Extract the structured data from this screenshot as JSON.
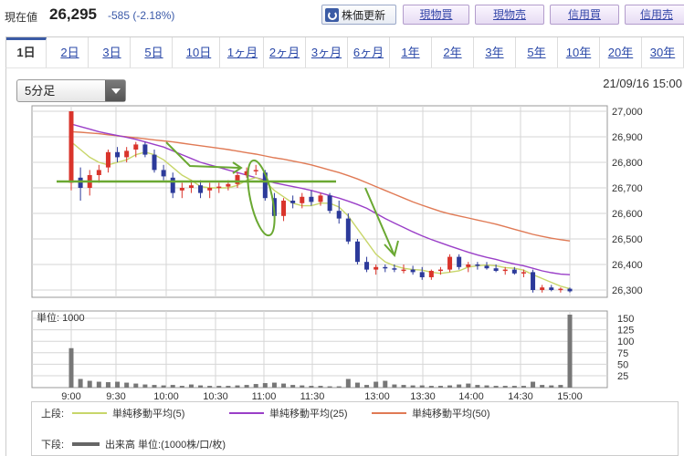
{
  "header": {
    "price_label": "現在値",
    "price_value": "26,295",
    "price_change": "-585 (-2.18%)",
    "refresh_label": "株価更新",
    "actions": [
      "現物買",
      "現物売",
      "信用買",
      "信用売"
    ]
  },
  "tabs": [
    "1日",
    "2日",
    "3日",
    "5日",
    "10日",
    "1ヶ月",
    "2ヶ月",
    "3ヶ月",
    "6ヶ月",
    "1年",
    "2年",
    "3年",
    "5年",
    "10年",
    "20年",
    "30年"
  ],
  "active_tab": "1日",
  "interval_select": {
    "value": "5分足"
  },
  "timestamp": "21/09/16 15:00",
  "volume_unit_label": "単位: 1000",
  "legend": {
    "upper_label": "上段:",
    "lower_label": "下段:",
    "ma5": "単純移動平均(5)",
    "ma25": "単純移動平均(25)",
    "ma50": "単純移動平均(50)",
    "volume": "出来高 単位:(1000株/口/枚)"
  },
  "colors": {
    "up": "#d9342b",
    "down": "#2c3a9a",
    "ma5": "#c8d66a",
    "ma25": "#9a3fc8",
    "ma50": "#e07a55",
    "annotation": "#6aa832",
    "volume": "#777777",
    "accent": "#3b5ba5"
  },
  "chart_data": [
    {
      "type": "candlestick",
      "x_ticks": [
        "9:00",
        "9:30",
        "10:00",
        "10:30",
        "11:00",
        "11:30",
        "13:00",
        "13:30",
        "14:00",
        "14:30",
        "15:00"
      ],
      "y_ticks": [
        "27,000",
        "26,900",
        "26,800",
        "26,700",
        "26,600",
        "26,500",
        "26,400",
        "26,300"
      ],
      "ylim": [
        26280,
        27000
      ],
      "candles": [
        {
          "o": 26720,
          "h": 27000,
          "l": 26690,
          "c": 27000
        },
        {
          "o": 26740,
          "h": 26780,
          "l": 26650,
          "c": 26700
        },
        {
          "o": 26700,
          "h": 26770,
          "l": 26670,
          "c": 26750
        },
        {
          "o": 26750,
          "h": 26790,
          "l": 26720,
          "c": 26770
        },
        {
          "o": 26780,
          "h": 26850,
          "l": 26760,
          "c": 26840
        },
        {
          "o": 26840,
          "h": 26860,
          "l": 26800,
          "c": 26820
        },
        {
          "o": 26820,
          "h": 26860,
          "l": 26800,
          "c": 26845
        },
        {
          "o": 26850,
          "h": 26880,
          "l": 26820,
          "c": 26870
        },
        {
          "o": 26870,
          "h": 26880,
          "l": 26820,
          "c": 26830
        },
        {
          "o": 26830,
          "h": 26850,
          "l": 26760,
          "c": 26770
        },
        {
          "o": 26770,
          "h": 26790,
          "l": 26730,
          "c": 26745
        },
        {
          "o": 26740,
          "h": 26760,
          "l": 26660,
          "c": 26680
        },
        {
          "o": 26690,
          "h": 26720,
          "l": 26660,
          "c": 26700
        },
        {
          "o": 26700,
          "h": 26730,
          "l": 26680,
          "c": 26710
        },
        {
          "o": 26710,
          "h": 26730,
          "l": 26660,
          "c": 26680
        },
        {
          "o": 26690,
          "h": 26720,
          "l": 26660,
          "c": 26700
        },
        {
          "o": 26700,
          "h": 26720,
          "l": 26680,
          "c": 26705
        },
        {
          "o": 26705,
          "h": 26730,
          "l": 26690,
          "c": 26715
        },
        {
          "o": 26715,
          "h": 26760,
          "l": 26700,
          "c": 26750
        },
        {
          "o": 26750,
          "h": 26780,
          "l": 26740,
          "c": 26765
        },
        {
          "o": 26765,
          "h": 26790,
          "l": 26750,
          "c": 26770
        },
        {
          "o": 26760,
          "h": 26770,
          "l": 26650,
          "c": 26660
        },
        {
          "o": 26660,
          "h": 26680,
          "l": 26580,
          "c": 26590
        },
        {
          "o": 26590,
          "h": 26660,
          "l": 26570,
          "c": 26650
        },
        {
          "o": 26650,
          "h": 26670,
          "l": 26620,
          "c": 26640
        },
        {
          "o": 26640,
          "h": 26680,
          "l": 26620,
          "c": 26665
        },
        {
          "o": 26665,
          "h": 26690,
          "l": 26630,
          "c": 26645
        },
        {
          "o": 26645,
          "h": 26680,
          "l": 26630,
          "c": 26670
        },
        {
          "o": 26670,
          "h": 26680,
          "l": 26600,
          "c": 26610
        },
        {
          "o": 26610,
          "h": 26650,
          "l": 26560,
          "c": 26580
        },
        {
          "o": 26580,
          "h": 26600,
          "l": 26480,
          "c": 26490
        },
        {
          "o": 26490,
          "h": 26500,
          "l": 26400,
          "c": 26410
        },
        {
          "o": 26410,
          "h": 26430,
          "l": 26370,
          "c": 26380
        },
        {
          "o": 26380,
          "h": 26400,
          "l": 26360,
          "c": 26390
        },
        {
          "o": 26390,
          "h": 26400,
          "l": 26370,
          "c": 26385
        },
        {
          "o": 26385,
          "h": 26400,
          "l": 26370,
          "c": 26380
        },
        {
          "o": 26380,
          "h": 26400,
          "l": 26365,
          "c": 26380
        },
        {
          "o": 26380,
          "h": 26395,
          "l": 26360,
          "c": 26370
        },
        {
          "o": 26370,
          "h": 26390,
          "l": 26340,
          "c": 26350
        },
        {
          "o": 26350,
          "h": 26380,
          "l": 26340,
          "c": 26375
        },
        {
          "o": 26375,
          "h": 26390,
          "l": 26360,
          "c": 26380
        },
        {
          "o": 26380,
          "h": 26440,
          "l": 26370,
          "c": 26430
        },
        {
          "o": 26430,
          "h": 26440,
          "l": 26380,
          "c": 26390
        },
        {
          "o": 26390,
          "h": 26410,
          "l": 26370,
          "c": 26400
        },
        {
          "o": 26400,
          "h": 26410,
          "l": 26380,
          "c": 26395
        },
        {
          "o": 26395,
          "h": 26410,
          "l": 26380,
          "c": 26385
        },
        {
          "o": 26385,
          "h": 26400,
          "l": 26370,
          "c": 26375
        },
        {
          "o": 26375,
          "h": 26390,
          "l": 26360,
          "c": 26380
        },
        {
          "o": 26380,
          "h": 26390,
          "l": 26360,
          "c": 26365
        },
        {
          "o": 26365,
          "h": 26380,
          "l": 26350,
          "c": 26370
        },
        {
          "o": 26370,
          "h": 26380,
          "l": 26290,
          "c": 26300
        },
        {
          "o": 26300,
          "h": 26320,
          "l": 26290,
          "c": 26310
        },
        {
          "o": 26310,
          "h": 26320,
          "l": 26295,
          "c": 26300
        },
        {
          "o": 26300,
          "h": 26310,
          "l": 26290,
          "c": 26305
        },
        {
          "o": 26305,
          "h": 26310,
          "l": 26290,
          "c": 26295
        }
      ],
      "ma5": [
        26880,
        26850,
        26820,
        26800,
        26790,
        26800,
        26810,
        26830,
        26840,
        26830,
        26810,
        26780,
        26750,
        26730,
        26705,
        26700,
        26700,
        26700,
        26710,
        26730,
        26740,
        26725,
        26690,
        26665,
        26640,
        26630,
        26630,
        26640,
        26640,
        26625,
        26590,
        26540,
        26490,
        26440,
        26410,
        26395,
        26385,
        26380,
        26378,
        26370,
        26365,
        26370,
        26375,
        26390,
        26395,
        26398,
        26395,
        26388,
        26385,
        26378,
        26360,
        26345,
        26330,
        26315,
        26305
      ],
      "ma25": [
        26950,
        26940,
        26930,
        26920,
        26912,
        26905,
        26898,
        26890,
        26880,
        26870,
        26860,
        26845,
        26830,
        26815,
        26800,
        26790,
        26780,
        26770,
        26760,
        26750,
        26740,
        26730,
        26720,
        26712,
        26705,
        26698,
        26690,
        26680,
        26670,
        26660,
        26648,
        26635,
        26620,
        26600,
        26580,
        26562,
        26545,
        26528,
        26512,
        26498,
        26485,
        26472,
        26460,
        26448,
        26437,
        26428,
        26420,
        26410,
        26402,
        26395,
        26385,
        26375,
        26368,
        26362,
        26360
      ],
      "ma50": [
        26920,
        26918,
        26915,
        26912,
        26908,
        26904,
        26900,
        26896,
        26892,
        26888,
        26884,
        26880,
        26875,
        26870,
        26865,
        26860,
        26855,
        26850,
        26844,
        26838,
        26832,
        26825,
        26818,
        26812,
        26805,
        26798,
        26790,
        26780,
        26770,
        26760,
        26748,
        26735,
        26720,
        26705,
        26690,
        26675,
        26660,
        26645,
        26632,
        26620,
        26608,
        26598,
        26590,
        26582,
        26574,
        26566,
        26558,
        26548,
        26538,
        26528,
        26518,
        26510,
        26503,
        26497,
        26492
      ]
    },
    {
      "type": "bar",
      "title": "出来高",
      "y_ticks": [
        "150",
        "125",
        "100",
        "75",
        "50",
        "25"
      ],
      "ylim": [
        0,
        160
      ],
      "values": [
        85,
        18,
        14,
        12,
        11,
        12,
        10,
        8,
        6,
        5,
        4,
        5,
        3,
        6,
        4,
        3,
        3,
        3,
        4,
        5,
        7,
        9,
        10,
        8,
        5,
        4,
        3,
        3,
        2,
        2,
        18,
        10,
        5,
        12,
        14,
        6,
        5,
        4,
        4,
        3,
        3,
        4,
        6,
        8,
        5,
        4,
        3,
        3,
        3,
        3,
        12,
        5,
        4,
        5,
        158
      ]
    }
  ]
}
